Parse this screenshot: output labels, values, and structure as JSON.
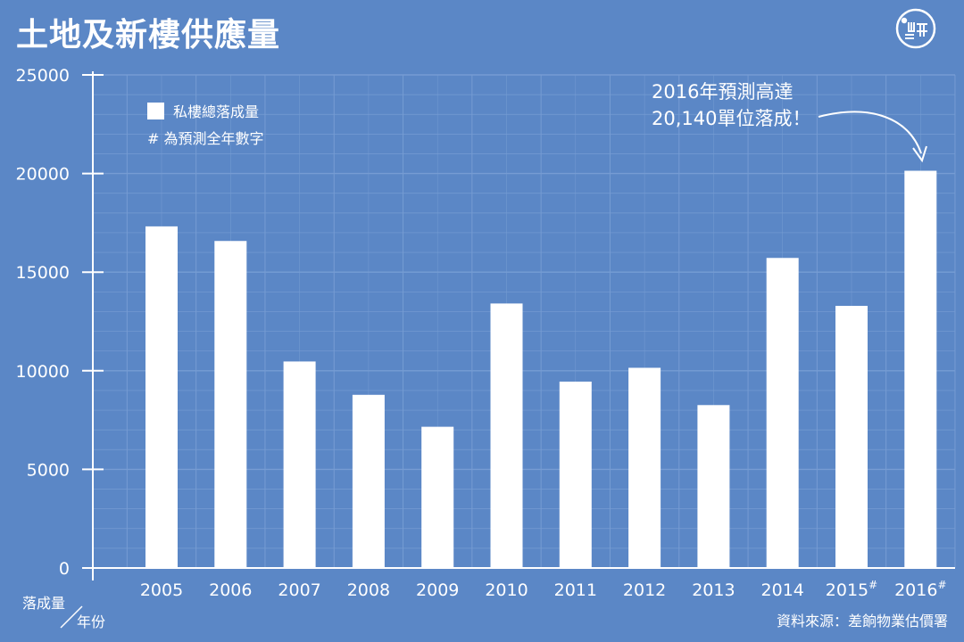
{
  "title": "土地及新樓供應量",
  "legend": {
    "series_label": "私樓總落成量",
    "note": "# 為預測全年數字"
  },
  "annotation": {
    "line1": "2016年預測高達",
    "line2": "20,140單位落成！"
  },
  "axis_labels": {
    "y": "落成量",
    "x": "年份"
  },
  "source": "資料來源：差餉物業估價署",
  "colors": {
    "background": "#5b87c6",
    "bar": "#ffffff",
    "grid": "#7fa4d8",
    "axis": "#ffffff"
  },
  "chart_data": {
    "type": "bar",
    "categories": [
      "2005",
      "2006",
      "2007",
      "2008",
      "2009",
      "2010",
      "2011",
      "2012",
      "2013",
      "2014",
      "2015#",
      "2016#"
    ],
    "values": [
      17320,
      16580,
      10470,
      8780,
      7160,
      13410,
      9450,
      10150,
      8260,
      15720,
      13290,
      20140
    ],
    "ylim": [
      0,
      25000
    ],
    "yticks": [
      0,
      5000,
      10000,
      15000,
      20000,
      25000
    ],
    "grid": true,
    "legend_position": "top-left"
  }
}
